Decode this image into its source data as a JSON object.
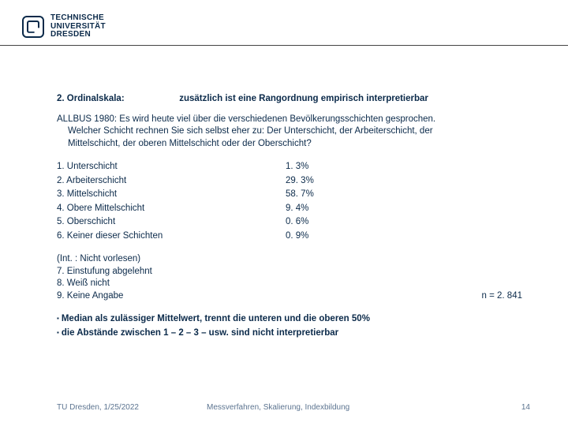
{
  "logo": {
    "line1": "TECHNISCHE",
    "line2": "UNIVERSITÄT",
    "line3": "DRESDEN"
  },
  "title": {
    "label": "2. Ordinalskala:",
    "desc": "zusätzlich ist eine Rangordnung empirisch interpretierbar"
  },
  "body": {
    "l1": "ALLBUS 1980: Es wird heute viel über die verschiedenen Bevölkerungsschichten gesprochen.",
    "l2": "Welcher Schicht rechnen Sie sich selbst eher zu: Der Unterschicht, der Arbeiterschicht, der",
    "l3": "Mittelschicht, der oberen Mittelschicht oder der Oberschicht?"
  },
  "survey": {
    "rows": [
      {
        "label": "1. Unterschicht",
        "value": "1. 3%"
      },
      {
        "label": "2. Arbeiterschicht",
        "value": "29. 3%"
      },
      {
        "label": "3. Mittelschicht",
        "value": "58. 7%"
      },
      {
        "label": "4. Obere Mittelschicht",
        "value": "9. 4%"
      },
      {
        "label": "5. Oberschicht",
        "value": "0. 6%"
      },
      {
        "label": "6. Keiner dieser Schichten",
        "value": "0. 9%"
      }
    ]
  },
  "notes": {
    "n0": "(Int. : Nicht vorlesen)",
    "n1": "7. Einstufung abgelehnt",
    "n2": "8. Weiß nicht",
    "n3": "9. Keine Angabe",
    "n_value": "n = 2. 841"
  },
  "bullets": {
    "b1": "Median als zulässiger Mittelwert, trennt die unteren und die oberen 50%",
    "b2": "die Abstände zwischen 1 – 2 – 3 – usw. sind nicht interpretierbar"
  },
  "footer": {
    "left": "TU Dresden, 1/25/2022",
    "mid": "Messverfahren, Skalierung, Indexbildung",
    "page": "14"
  },
  "colors": {
    "text": "#0b2a4a",
    "footer": "#5c7490",
    "rule": "#444444",
    "bg": "#ffffff"
  },
  "typography": {
    "body_fontsize": 11.5,
    "footer_fontsize": 10,
    "logo_fontsize": 10,
    "font_family": "Verdana"
  }
}
